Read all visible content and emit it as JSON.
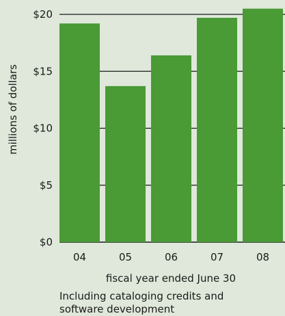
{
  "chart_data": {
    "type": "bar",
    "categories": [
      "04",
      "05",
      "06",
      "07",
      "08"
    ],
    "values": [
      19.2,
      13.7,
      16.4,
      19.7,
      20.5
    ],
    "yticks": [
      0,
      5,
      10,
      15,
      20
    ],
    "ytick_labels": [
      "$0",
      "$5",
      "$10",
      "$15",
      "$20"
    ],
    "ylim": [
      0,
      20.5
    ],
    "xlabel": "fiscal year ended June 30",
    "ylabel": "millions of dollars",
    "grid": true,
    "bar_color": "#4a9a35",
    "grid_color": "#1a1a1a"
  },
  "note": "Including cataloging credits and software development"
}
